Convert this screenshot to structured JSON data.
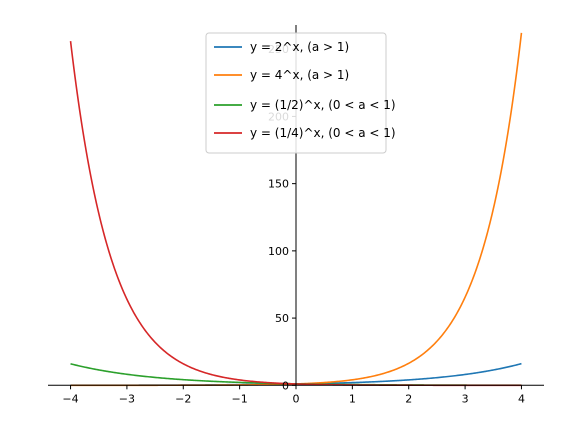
{
  "chart_data": {
    "type": "line",
    "xlim": [
      -4.4,
      4.4
    ],
    "ylim": [
      -2,
      268
    ],
    "axes_style": "centered spines (x-axis at y=0, y-axis at x=0), top and right spines hidden",
    "grid": false,
    "legend_position": "top-center",
    "x_ticks": [
      {
        "value": -4,
        "label": "−4"
      },
      {
        "value": -3,
        "label": "−3"
      },
      {
        "value": -2,
        "label": "−2"
      },
      {
        "value": -1,
        "label": "−1"
      },
      {
        "value": 0,
        "label": "0"
      },
      {
        "value": 1,
        "label": "1"
      },
      {
        "value": 2,
        "label": "2"
      },
      {
        "value": 3,
        "label": "3"
      },
      {
        "value": 4,
        "label": "4"
      }
    ],
    "y_ticks": [
      {
        "value": 0,
        "label": "0"
      },
      {
        "value": 50,
        "label": "50"
      },
      {
        "value": 100,
        "label": "100"
      },
      {
        "value": 150,
        "label": "150"
      },
      {
        "value": 200,
        "label": "200"
      },
      {
        "value": 250,
        "label": "250"
      }
    ],
    "x": [
      -4,
      -3.5,
      -3,
      -2.5,
      -2,
      -1.5,
      -1,
      -0.5,
      0,
      0.5,
      1,
      1.5,
      2,
      2.5,
      3,
      3.5,
      4
    ],
    "series": [
      {
        "name": "y = 2^x, (a > 1)",
        "color": "#1f77b4",
        "values": [
          0.063,
          0.088,
          0.125,
          0.177,
          0.25,
          0.354,
          0.5,
          0.707,
          1,
          1.414,
          2,
          2.828,
          4,
          5.657,
          8,
          11.314,
          16
        ]
      },
      {
        "name": "y = 4^x, (a > 1)",
        "color": "#ff7f0e",
        "values": [
          0.004,
          0.008,
          0.016,
          0.031,
          0.063,
          0.125,
          0.25,
          0.5,
          1,
          2,
          4,
          8,
          16,
          32,
          64,
          128,
          256
        ]
      },
      {
        "name": "y = (1/2)^x, (0 < a < 1)",
        "color": "#2ca02c",
        "values": [
          16,
          11.314,
          8,
          5.657,
          4,
          2.828,
          2,
          1.414,
          1,
          0.707,
          0.5,
          0.354,
          0.25,
          0.177,
          0.125,
          0.088,
          0.063
        ]
      },
      {
        "name": "y = (1/4)^x, (0 < a < 1)",
        "color": "#d62728",
        "values": [
          256,
          128,
          64,
          32,
          16,
          8,
          4,
          2,
          1,
          0.5,
          0.25,
          0.125,
          0.063,
          0.031,
          0.016,
          0.008,
          0.004
        ]
      }
    ]
  }
}
